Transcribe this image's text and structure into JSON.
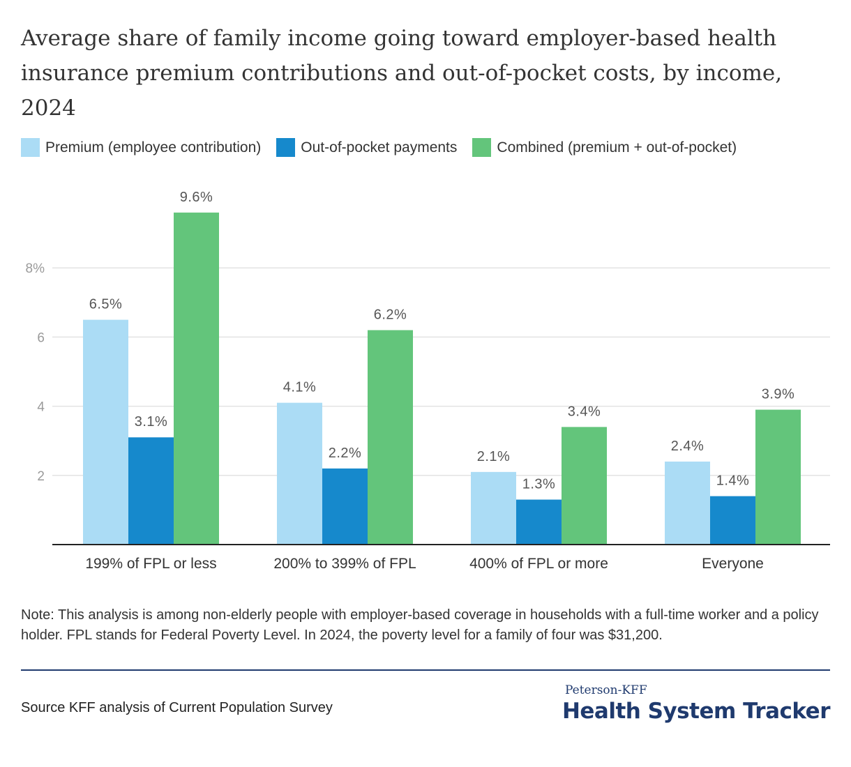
{
  "chart_data": {
    "type": "bar",
    "title": "Average share of family income going toward employer-based health insurance premium contributions and out-of-pocket costs, by income, 2024",
    "categories": [
      "199% of FPL or less",
      "200% to 399% of FPL",
      "400% of FPL or more",
      "Everyone"
    ],
    "series": [
      {
        "name": "Premium (employee contribution)",
        "color": "#abdcf5",
        "values": [
          6.5,
          4.1,
          2.1,
          2.4
        ],
        "labels": [
          "6.5%",
          "4.1%",
          "2.1%",
          "2.4%"
        ]
      },
      {
        "name": "Out-of-pocket payments",
        "color": "#1689cc",
        "values": [
          3.1,
          2.2,
          1.3,
          1.4
        ],
        "labels": [
          "3.1%",
          "2.2%",
          "1.3%",
          "1.4%"
        ]
      },
      {
        "name": "Combined (premium + out-of-pocket)",
        "color": "#63c57b",
        "values": [
          9.6,
          6.2,
          3.4,
          3.9
        ],
        "labels": [
          "9.6%",
          "6.2%",
          "3.4%",
          "3.9%"
        ]
      }
    ],
    "y_ticks": [
      2,
      4,
      6,
      8
    ],
    "y_tick_labels": [
      "2",
      "4",
      "6",
      "8%"
    ],
    "ylim": [
      0,
      10
    ],
    "xlabel": "",
    "ylabel": "",
    "legend": "top-left",
    "grid": true
  },
  "note": "Note: This analysis is among non-elderly people with employer-based coverage in households with a full-time worker and a policy holder. FPL stands for Federal Poverty Level. In 2024, the poverty level for a family of four was $31,200.",
  "source": "Source KFF analysis of Current Population Survey",
  "brand": {
    "top": "Peterson-KFF",
    "main": "Health System Tracker"
  }
}
